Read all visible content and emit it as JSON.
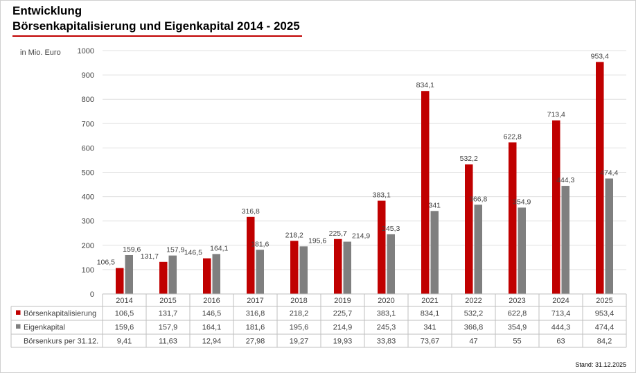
{
  "header": {
    "title_line1": "Entwicklung",
    "title_line2": "Börsenkapitalisierung und Eigenkapital 2014 - 2025",
    "accent_color": "#c00000"
  },
  "footer": {
    "stand": "Stand: 31.12.2025"
  },
  "chart_data": {
    "type": "bar",
    "title": "Börsenkapitalisierung und Eigenkapital 2014 - 2025",
    "ylabel": "in Mio. Euro",
    "xlabel": "",
    "ylim": [
      0,
      1000
    ],
    "yticks": [
      0,
      100,
      200,
      300,
      400,
      500,
      600,
      700,
      800,
      900,
      1000
    ],
    "grid": true,
    "categories": [
      "2014",
      "2015",
      "2016",
      "2017",
      "2018",
      "2019",
      "2020",
      "2021",
      "2022",
      "2023",
      "2024",
      "2025"
    ],
    "series": [
      {
        "name": "Börsenkapitalisierung",
        "color": "#c00000",
        "values": [
          106.5,
          131.7,
          146.5,
          316.8,
          218.2,
          225.7,
          383.1,
          834.1,
          532.2,
          622.8,
          713.4,
          953.4
        ],
        "labels": [
          "106,5",
          "131,7",
          "146,5",
          "316,8",
          "218,2",
          "225,7",
          "383,1",
          "834,1",
          "532,2",
          "622,8",
          "713,4",
          "953,4"
        ]
      },
      {
        "name": "Eigenkapital",
        "color": "#7f7f7f",
        "values": [
          159.6,
          157.9,
          164.1,
          181.6,
          195.6,
          214.9,
          245.3,
          341,
          366.8,
          354.9,
          444.3,
          474.4
        ],
        "labels": [
          "159,6",
          "157,9",
          "164,1",
          "181,6",
          "195,6",
          "214,9",
          "245,3",
          "341",
          "366,8",
          "354,9",
          "444,3",
          "474,4"
        ]
      }
    ],
    "table_rows": [
      {
        "label": "Börsenkapitalisierung",
        "legend_color": "#c00000",
        "series_index": 0
      },
      {
        "label": "Eigenkapital",
        "legend_color": "#7f7f7f",
        "series_index": 1
      },
      {
        "label": "Börsenkurs per 31.12.",
        "legend_color": "",
        "values": [
          "9,41",
          "11,63",
          "12,94",
          "27,98",
          "19,27",
          "19,93",
          "33,83",
          "73,67",
          "47",
          "55",
          "63",
          "84,2"
        ]
      }
    ]
  }
}
